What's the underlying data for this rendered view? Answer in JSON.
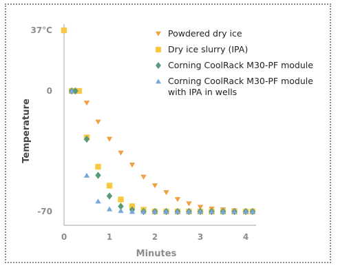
{
  "chart_data": {
    "type": "scatter",
    "xlabel": "Minutes",
    "ylabel": "Temperature",
    "xlim": [
      0,
      4.2
    ],
    "ylim": [
      -80,
      37
    ],
    "x_ticks": [
      "0",
      "1",
      "2",
      "3",
      "4"
    ],
    "y_ticks": [
      {
        "value": 37,
        "label": "37°C"
      },
      {
        "value": 0,
        "label": "0"
      },
      {
        "value": -70,
        "label": "-70"
      }
    ],
    "grid": false,
    "legend_position": "top-right",
    "series": [
      {
        "name": "Powdered dry ice",
        "marker": "triangle-down",
        "color": "#f0a040",
        "points": [
          [
            0,
            37
          ],
          [
            0.33,
            0
          ],
          [
            0.5,
            -7
          ],
          [
            0.75,
            -18
          ],
          [
            1.0,
            -28
          ],
          [
            1.25,
            -36
          ],
          [
            1.5,
            -43
          ],
          [
            1.75,
            -50
          ],
          [
            2.0,
            -55
          ],
          [
            2.25,
            -59
          ],
          [
            2.5,
            -63
          ],
          [
            2.75,
            -65.5
          ],
          [
            3.0,
            -67.5
          ],
          [
            3.25,
            -68.5
          ],
          [
            3.5,
            -69
          ],
          [
            3.75,
            -69.5
          ],
          [
            4.0,
            -70
          ],
          [
            4.15,
            -70
          ]
        ]
      },
      {
        "name": "Dry ice slurry (IPA)",
        "marker": "square",
        "color": "#f8c840",
        "points": [
          [
            0,
            37
          ],
          [
            0.17,
            0
          ],
          [
            0.33,
            0
          ],
          [
            0.5,
            -27
          ],
          [
            0.75,
            -44
          ],
          [
            1.0,
            -55
          ],
          [
            1.25,
            -63
          ],
          [
            1.5,
            -67
          ],
          [
            1.75,
            -69
          ],
          [
            2.0,
            -70
          ],
          [
            2.25,
            -70
          ],
          [
            2.5,
            -70
          ],
          [
            2.75,
            -70
          ],
          [
            3.0,
            -70
          ],
          [
            3.25,
            -70
          ],
          [
            3.5,
            -70
          ],
          [
            3.75,
            -70
          ],
          [
            4.0,
            -70
          ],
          [
            4.15,
            -70
          ]
        ]
      },
      {
        "name": "Corning CoolRack M30-PF module",
        "marker": "diamond",
        "color": "#5a9a7a",
        "points": [
          [
            0.17,
            0
          ],
          [
            0.25,
            0
          ],
          [
            0.5,
            -28
          ],
          [
            0.75,
            -49
          ],
          [
            1.0,
            -61
          ],
          [
            1.25,
            -67
          ],
          [
            1.5,
            -69
          ],
          [
            1.75,
            -70
          ],
          [
            2.0,
            -70
          ],
          [
            2.25,
            -70
          ],
          [
            2.5,
            -70
          ],
          [
            2.75,
            -70
          ],
          [
            3.0,
            -70
          ],
          [
            3.25,
            -70
          ],
          [
            3.5,
            -70
          ],
          [
            3.75,
            -70
          ],
          [
            4.0,
            -70
          ],
          [
            4.15,
            -70
          ]
        ]
      },
      {
        "name": "Corning CoolRack M30-PF module",
        "name_line2": "with IPA in wells",
        "marker": "triangle-up",
        "color": "#78a8d8",
        "points": [
          [
            0.17,
            0
          ],
          [
            0.5,
            -49
          ],
          [
            0.75,
            -64
          ],
          [
            1.0,
            -68.5
          ],
          [
            1.25,
            -69.5
          ],
          [
            1.5,
            -70
          ],
          [
            1.75,
            -70
          ],
          [
            2.0,
            -70
          ],
          [
            2.25,
            -70
          ],
          [
            2.5,
            -70
          ],
          [
            2.75,
            -70
          ],
          [
            3.0,
            -70
          ],
          [
            3.25,
            -70
          ],
          [
            3.5,
            -70
          ],
          [
            3.75,
            -70
          ],
          [
            4.0,
            -70
          ],
          [
            4.15,
            -70
          ]
        ]
      }
    ]
  }
}
